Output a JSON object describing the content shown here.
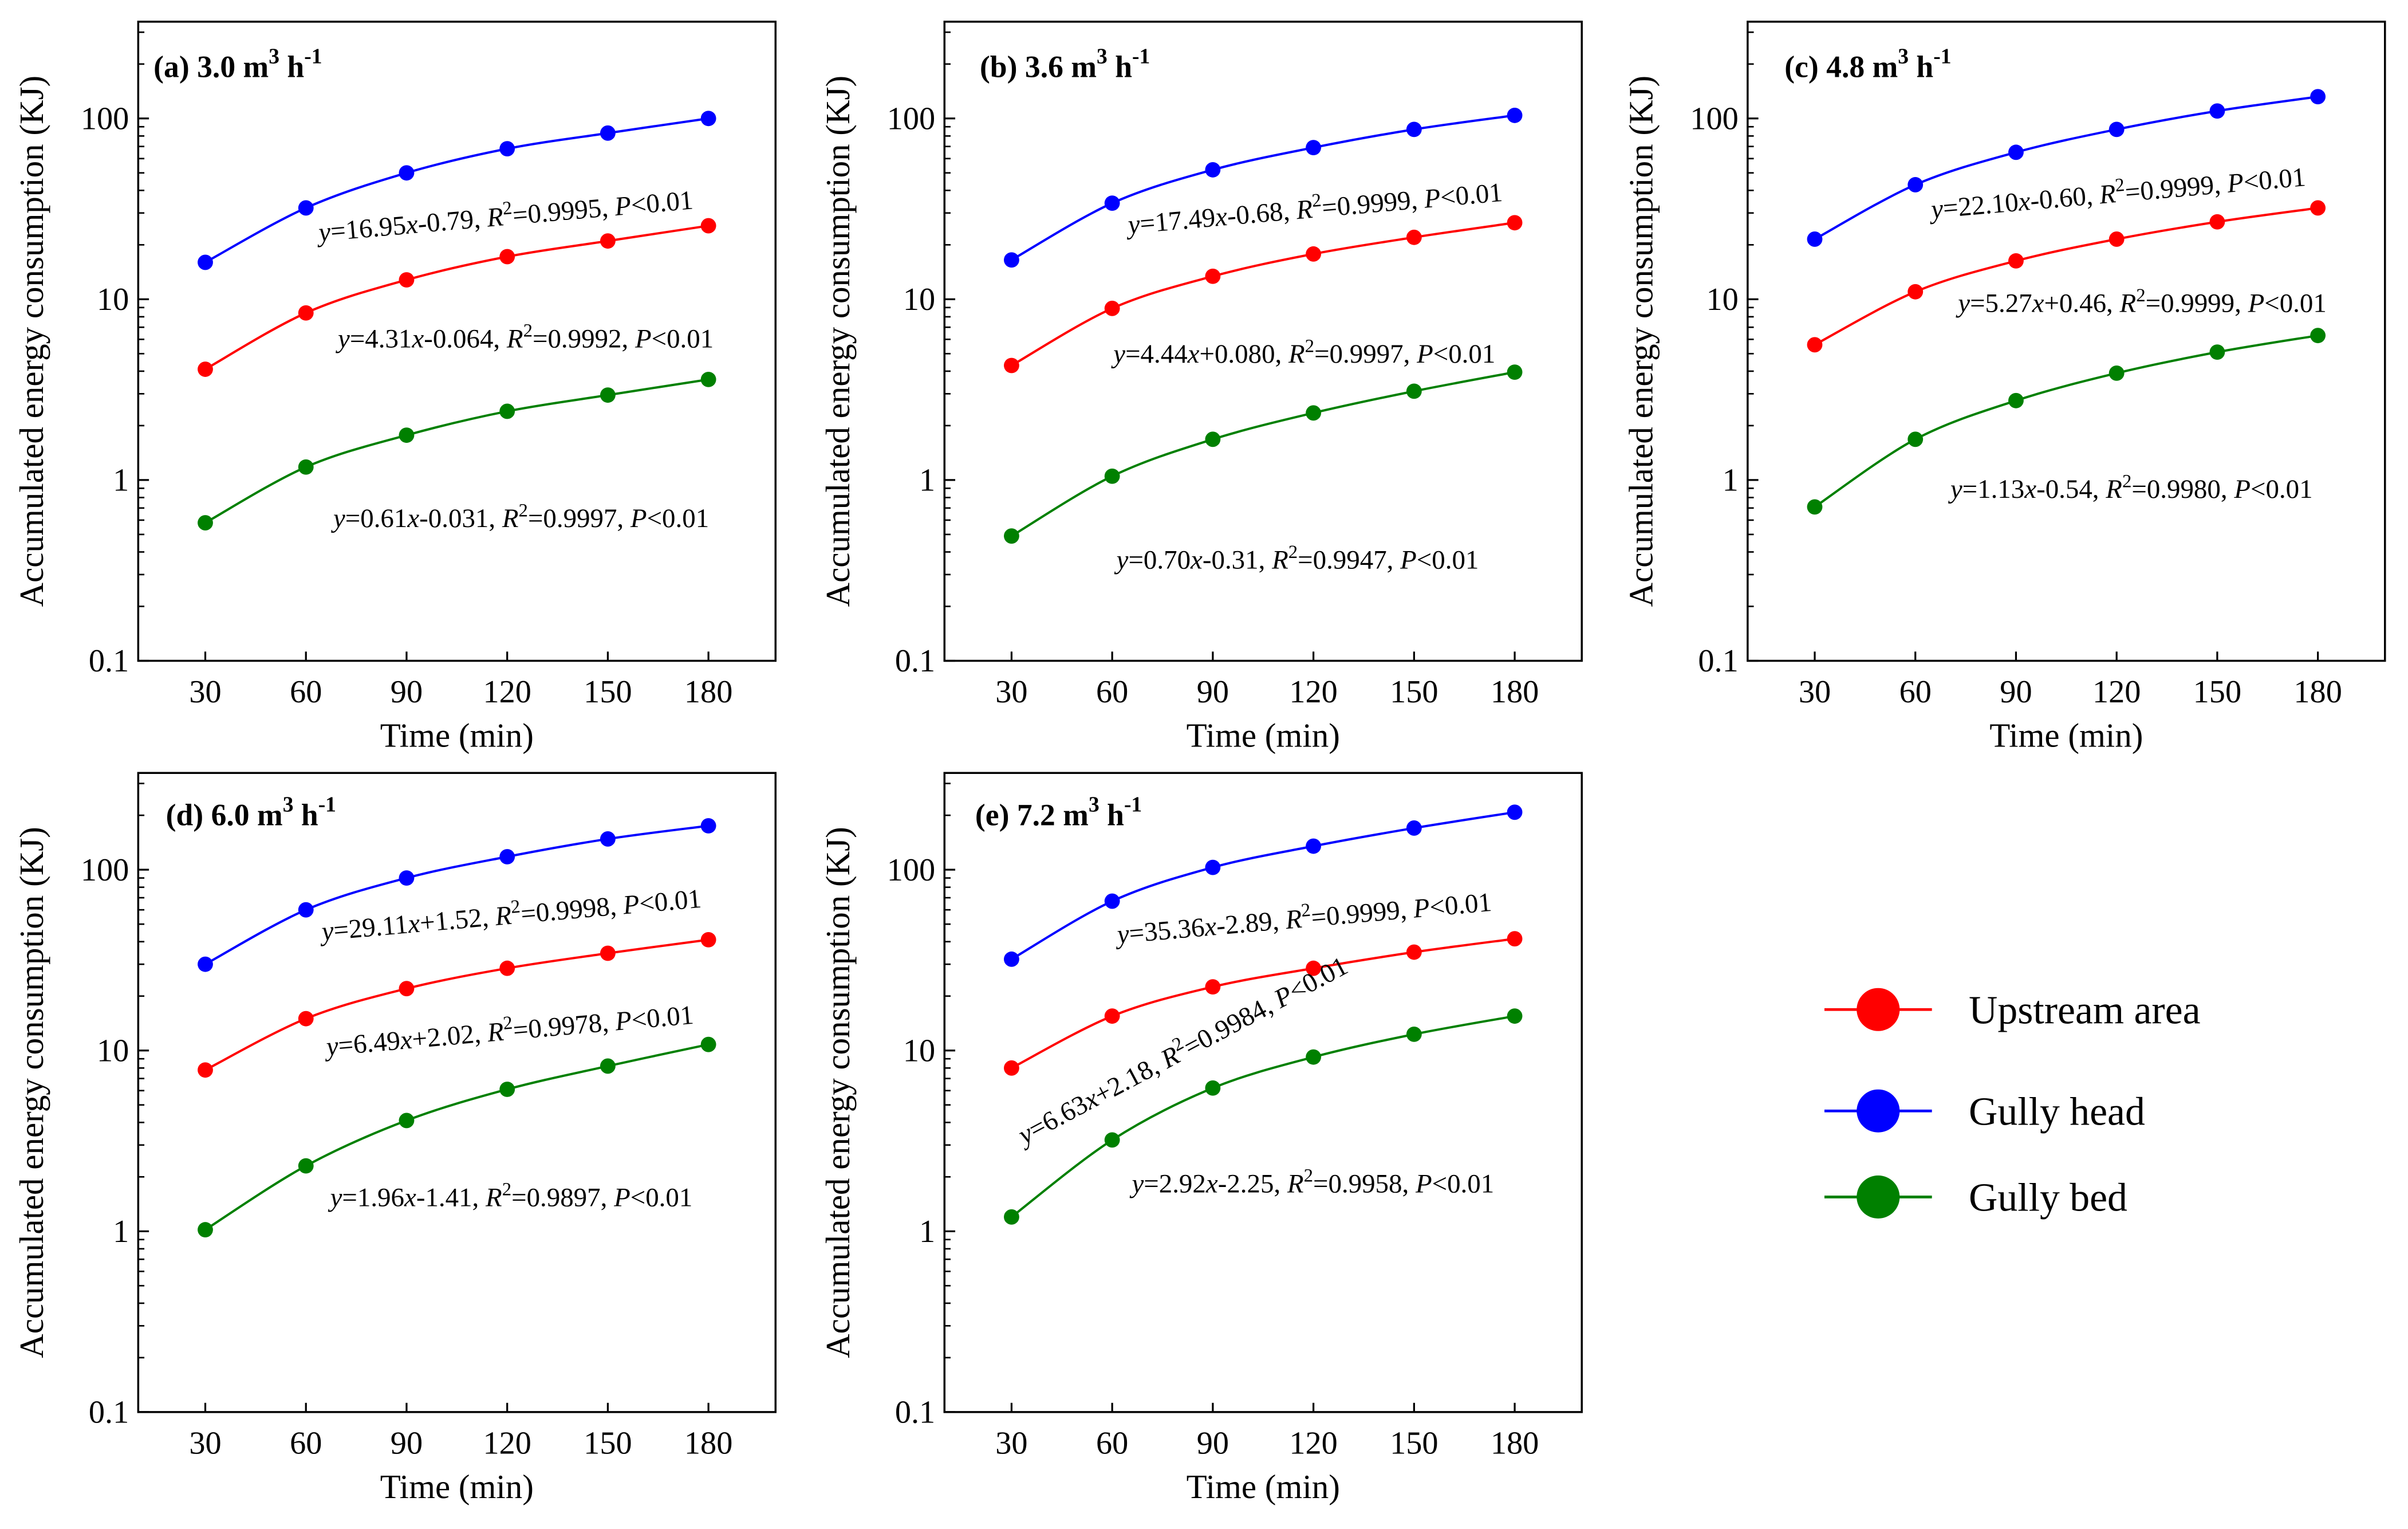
{
  "chart_data": [
    {
      "type": "line",
      "panel_label": "(a) 3.0 m",
      "panel_unit_sup": "3",
      "panel_unit_tail": " h",
      "panel_unit_sup2": "-1",
      "xlabel": "Time (min)",
      "ylabel": "Accumulated energy consumption (KJ)",
      "xlim": [
        10,
        200
      ],
      "ylim": [
        0.1,
        343
      ],
      "yscale": "log",
      "xticks": [
        "30",
        "60",
        "90",
        "120",
        "150",
        "180"
      ],
      "yticks": [
        "0.1",
        "1",
        "10",
        "100"
      ],
      "x": [
        30,
        60,
        90,
        120,
        150,
        180
      ],
      "series": [
        {
          "name": "Gully head",
          "values": [
            16,
            32,
            50,
            68,
            83,
            100
          ],
          "eq": {
            "slope": "16.95",
            "intercept": "-0.79",
            "r2": "0.9995",
            "p": "0.01"
          }
        },
        {
          "name": "Upstream area",
          "values": [
            4.1,
            8.4,
            12.8,
            17.2,
            21,
            25.5
          ],
          "eq": {
            "slope": "4.31",
            "intercept": "-0.064",
            "r2": "0.9992",
            "p": "0.01"
          }
        },
        {
          "name": "Gully bed",
          "values": [
            0.58,
            1.18,
            1.77,
            2.4,
            2.95,
            3.6
          ],
          "eq": {
            "slope": "0.61",
            "intercept": "-0.031",
            "r2": "0.9997",
            "p": "0.01"
          }
        }
      ]
    },
    {
      "type": "line",
      "panel_label": "(b) 3.6 m",
      "panel_unit_sup": "3",
      "panel_unit_tail": " h",
      "panel_unit_sup2": "-1",
      "xlabel": "Time (min)",
      "ylabel": "Accumulated energy consumption (KJ)",
      "xlim": [
        10,
        200
      ],
      "ylim": [
        0.1,
        343
      ],
      "yscale": "log",
      "xticks": [
        "30",
        "60",
        "90",
        "120",
        "150",
        "180"
      ],
      "yticks": [
        "0.1",
        "1",
        "10",
        "100"
      ],
      "x": [
        30,
        60,
        90,
        120,
        150,
        180
      ],
      "series": [
        {
          "name": "Gully head",
          "values": [
            16.5,
            34,
            52,
            69,
            87,
            104
          ],
          "eq": {
            "slope": "17.49",
            "intercept": "-0.68",
            "r2": "0.9999",
            "p": "0.01"
          }
        },
        {
          "name": "Upstream area",
          "values": [
            4.3,
            8.9,
            13.4,
            17.8,
            22,
            26.5
          ],
          "eq": {
            "slope": "4.44",
            "intercept": "+0.080",
            "r2": "0.9997",
            "p": "0.01"
          }
        },
        {
          "name": "Gully bed",
          "values": [
            0.49,
            1.05,
            1.68,
            2.35,
            3.1,
            3.95
          ],
          "eq": {
            "slope": "0.70",
            "intercept": "-0.31",
            "r2": "0.9947",
            "p": "0.01"
          }
        }
      ]
    },
    {
      "type": "line",
      "panel_label": "(c) 4.8 m",
      "panel_unit_sup": "3",
      "panel_unit_tail": " h",
      "panel_unit_sup2": "-1",
      "xlabel": "Time (min)",
      "ylabel": "Accumulated energy consumption (KJ)",
      "xlim": [
        10,
        200
      ],
      "ylim": [
        0.1,
        343
      ],
      "yscale": "log",
      "xticks": [
        "30",
        "60",
        "90",
        "120",
        "150",
        "180"
      ],
      "yticks": [
        "0.1",
        "1",
        "10",
        "100"
      ],
      "x": [
        30,
        60,
        90,
        120,
        150,
        180
      ],
      "series": [
        {
          "name": "Gully head",
          "values": [
            21.5,
            43,
            65,
            87,
            110,
            132
          ],
          "eq": {
            "slope": "22.10",
            "intercept": "-0.60",
            "r2": "0.9999",
            "p": "0.01"
          }
        },
        {
          "name": "Upstream area",
          "values": [
            5.6,
            11,
            16.3,
            21.5,
            26.8,
            32
          ],
          "eq": {
            "slope": "5.27",
            "intercept": "+0.46",
            "r2": "0.9999",
            "p": "0.01"
          }
        },
        {
          "name": "Gully bed",
          "values": [
            0.71,
            1.68,
            2.75,
            3.9,
            5.1,
            6.3
          ],
          "eq": {
            "slope": "1.13",
            "intercept": "-0.54",
            "r2": "0.9980",
            "p": "0.01"
          }
        }
      ]
    },
    {
      "type": "line",
      "panel_label": "(d) 6.0 m",
      "panel_unit_sup": "3",
      "panel_unit_tail": " h",
      "panel_unit_sup2": "-1",
      "xlabel": "Time (min)",
      "ylabel": "Accumulated energy consumption (KJ)",
      "xlim": [
        10,
        200
      ],
      "ylim": [
        0.1,
        343
      ],
      "yscale": "log",
      "xticks": [
        "30",
        "60",
        "90",
        "120",
        "150",
        "180"
      ],
      "yticks": [
        "0.1",
        "1",
        "10",
        "100"
      ],
      "x": [
        30,
        60,
        90,
        120,
        150,
        180
      ],
      "series": [
        {
          "name": "Gully head",
          "values": [
            30,
            60,
            90,
            118,
            148,
            175
          ],
          "eq": {
            "slope": "29.11",
            "intercept": "+1.52",
            "r2": "0.9998",
            "p": "0.01"
          }
        },
        {
          "name": "Upstream area",
          "values": [
            7.8,
            15,
            22,
            28.5,
            34.5,
            41
          ],
          "eq": {
            "slope": "6.49",
            "intercept": "+2.02",
            "r2": "0.9978",
            "p": "0.01"
          }
        },
        {
          "name": "Gully bed",
          "values": [
            1.02,
            2.3,
            4.1,
            6.1,
            8.2,
            10.8
          ],
          "eq": {
            "slope": "1.96",
            "intercept": "-1.41",
            "r2": "0.9897",
            "p": "0.01"
          }
        }
      ]
    },
    {
      "type": "line",
      "panel_label": "(e) 7.2 m",
      "panel_unit_sup": "3",
      "panel_unit_tail": " h",
      "panel_unit_sup2": "-1",
      "xlabel": "Time (min)",
      "ylabel": "Accumulated energy consumption (KJ)",
      "xlim": [
        10,
        200
      ],
      "ylim": [
        0.1,
        343
      ],
      "yscale": "log",
      "xticks": [
        "30",
        "60",
        "90",
        "120",
        "150",
        "180"
      ],
      "yticks": [
        "0.1",
        "1",
        "10",
        "100"
      ],
      "x": [
        30,
        60,
        90,
        120,
        150,
        180
      ],
      "series": [
        {
          "name": "Gully head",
          "values": [
            32,
            67,
            103,
            135,
            170,
            208
          ],
          "eq": {
            "slope": "35.36",
            "intercept": "-2.89",
            "r2": "0.9999",
            "p": "0.01"
          }
        },
        {
          "name": "Upstream area",
          "values": [
            8,
            15.5,
            22.5,
            28.5,
            35,
            41.5
          ],
          "eq": {
            "slope": "6.63",
            "intercept": "+2.18",
            "r2": "0.9984",
            "p": "0.01"
          }
        },
        {
          "name": "Gully bed",
          "values": [
            1.2,
            3.2,
            6.2,
            9.2,
            12.3,
            15.5
          ],
          "eq": {
            "slope": "2.92",
            "intercept": "-2.25",
            "r2": "0.9958",
            "p": "0.01"
          }
        }
      ]
    }
  ],
  "colors": {
    "Upstream area": "#ff0000",
    "Gully head": "#0000ff",
    "Gully bed": "#008000"
  },
  "legend": {
    "placement": "right",
    "items": [
      "Upstream area",
      "Gully head",
      "Gully bed"
    ]
  }
}
